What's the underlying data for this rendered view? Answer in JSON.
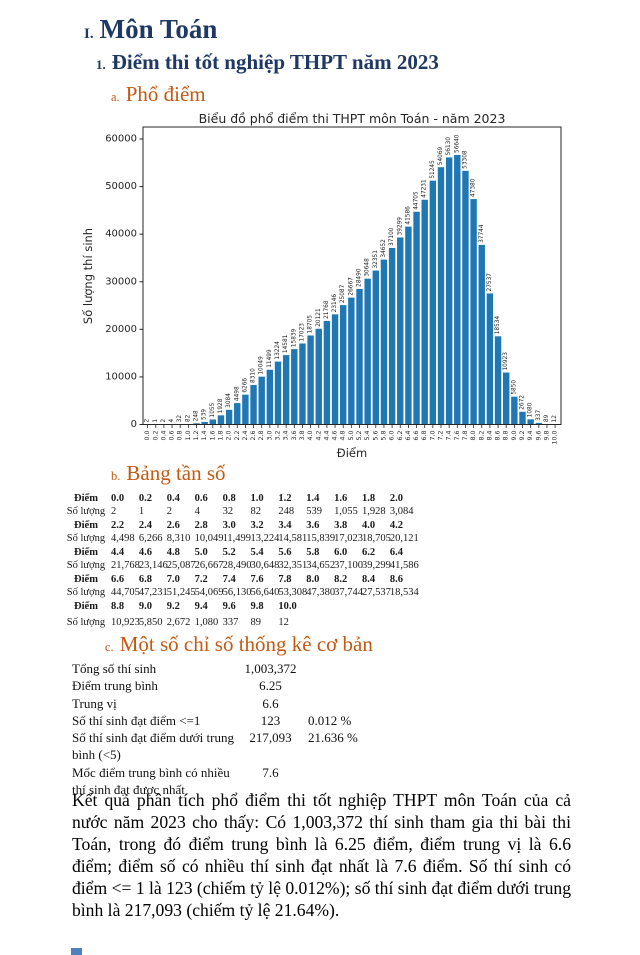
{
  "colors": {
    "heading_navy": "#1f3864",
    "heading_orange": "#c45911",
    "bar_blue": "#1f77b4"
  },
  "headings": {
    "h1": {
      "num": "I.",
      "text": "Môn Toán"
    },
    "h2": {
      "num": "1.",
      "text": "Điểm thi tốt nghiệp THPT năm 2023"
    },
    "a": {
      "num": "a.",
      "text": "Phổ điểm"
    },
    "b": {
      "num": "b.",
      "text": "Bảng tần số"
    },
    "c": {
      "num": "c.",
      "text": "Một số chỉ số thống kê cơ bản"
    }
  },
  "chart_data": {
    "type": "bar",
    "title": "Biểu đồ phổ điểm thi THPT môn Toán - năm 2023",
    "xlabel": "Điểm",
    "ylabel": "Số lượng thí sinh",
    "bar_color": "#1f77b4",
    "grid": false,
    "legend": false,
    "ylim": [
      0,
      62500
    ],
    "yticks": [
      0,
      10000,
      20000,
      30000,
      40000,
      50000,
      60000
    ],
    "categories": [
      "0.0",
      "0.2",
      "0.4",
      "0.6",
      "0.8",
      "1.0",
      "1.2",
      "1.4",
      "1.6",
      "1.8",
      "2.0",
      "2.2",
      "2.4",
      "2.6",
      "2.8",
      "3.0",
      "3.2",
      "3.4",
      "3.6",
      "3.8",
      "4.0",
      "4.2",
      "4.4",
      "4.6",
      "4.8",
      "5.0",
      "5.2",
      "5.4",
      "5.6",
      "5.8",
      "6.0",
      "6.2",
      "6.4",
      "6.6",
      "6.8",
      "7.0",
      "7.2",
      "7.4",
      "7.6",
      "7.8",
      "8.0",
      "8.2",
      "8.4",
      "8.6",
      "8.8",
      "9.0",
      "9.2",
      "9.4",
      "9.6",
      "9.8",
      "10.0"
    ],
    "values": [
      2,
      1,
      2,
      4,
      32,
      82,
      248,
      539,
      1055,
      1928,
      3084,
      4498,
      6266,
      8310,
      10049,
      11499,
      13224,
      14581,
      15839,
      17023,
      18705,
      20121,
      21768,
      23146,
      25087,
      26667,
      28490,
      30648,
      32351,
      34652,
      37100,
      39299,
      41586,
      44705,
      47231,
      51245,
      54069,
      56130,
      56640,
      53308,
      47380,
      37744,
      27537,
      18534,
      10923,
      5850,
      2672,
      1080,
      337,
      89,
      12
    ]
  },
  "freq_table": {
    "row_label_diem": "Điểm",
    "row_label_soluong": "Số lượng",
    "pairs": [
      {
        "diem": [
          "0.0",
          "0.2",
          "0.4",
          "0.6",
          "0.8",
          "1.0",
          "1.2",
          "1.4",
          "1.6",
          "1.8",
          "2.0"
        ],
        "soluong": [
          "2",
          "1",
          "2",
          "4",
          "32",
          "82",
          "248",
          "539",
          "1,055",
          "1,928",
          "3,084"
        ]
      },
      {
        "diem": [
          "2.2",
          "2.4",
          "2.6",
          "2.8",
          "3.0",
          "3.2",
          "3.4",
          "3.6",
          "3.8",
          "4.0",
          "4.2"
        ],
        "soluong": [
          "4,498",
          "6,266",
          "8,310",
          "10,049",
          "11,499",
          "13,224",
          "14,581",
          "15,839",
          "17,023",
          "18,705",
          "20,121"
        ]
      },
      {
        "diem": [
          "4.4",
          "4.6",
          "4.8",
          "5.0",
          "5.2",
          "5.4",
          "5.6",
          "5.8",
          "6.0",
          "6.2",
          "6.4"
        ],
        "soluong": [
          "21,768",
          "23,146",
          "25,087",
          "26,667",
          "28,490",
          "30,648",
          "32,351",
          "34,652",
          "37,100",
          "39,299",
          "41,586"
        ]
      },
      {
        "diem": [
          "6.6",
          "6.8",
          "7.0",
          "7.2",
          "7.4",
          "7.6",
          "7.8",
          "8.0",
          "8.2",
          "8.4",
          "8.6"
        ],
        "soluong": [
          "44,705",
          "47,231",
          "51,245",
          "54,069",
          "56,130",
          "56,640",
          "53,308",
          "47,380",
          "37,744",
          "27,537",
          "18,534"
        ]
      },
      {
        "diem": [
          "8.8",
          "9.0",
          "9.2",
          "9.4",
          "9.6",
          "9.8",
          "10.0"
        ],
        "soluong": [
          "10,923",
          "5,850",
          "2,672",
          "1,080",
          "337",
          "89",
          "12"
        ]
      }
    ]
  },
  "stats": {
    "rows": [
      {
        "label_lines": [
          "Tổng số thí sinh"
        ],
        "value": "1,003,372",
        "pct": ""
      },
      {
        "label_lines": [
          "Điểm trung bình"
        ],
        "value": "6.25",
        "pct": ""
      },
      {
        "label_lines": [
          "Trung vị"
        ],
        "value": "6.6",
        "pct": ""
      },
      {
        "label_lines": [
          "Số thí sinh đạt điểm <=1"
        ],
        "value": "123",
        "pct": "0.012 %"
      },
      {
        "label_lines": [
          "Số thí sinh đạt điểm dưới trung",
          "bình (<5)"
        ],
        "value": "217,093",
        "pct": "21.636 %"
      },
      {
        "label_lines": [
          "Mốc điểm trung bình có nhiều",
          "thí sinh đạt được nhất"
        ],
        "value": "7.6",
        "pct": ""
      }
    ]
  },
  "paragraph": "Kết quả phân tích phổ điểm thi tốt nghiệp THPT môn Toán của cả nước năm 2023 cho thấy: Có 1,003,372 thí sinh tham gia thi bài thi Toán, trong đó điểm trung bình là 6.25 điểm, điểm trung vị là 6.6 điểm; điểm số có nhiều thí sinh đạt nhất là 7.6 điểm. Số thí sinh có điểm <= 1 là 123 (chiếm tỷ lệ 0.012%); số thí sinh đạt điểm dưới trung bình là 217,093 (chiếm tỷ lệ 21.64%)."
}
